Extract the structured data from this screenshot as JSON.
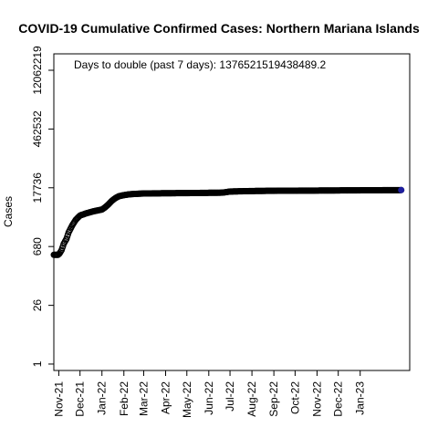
{
  "chart_data": {
    "type": "scatter",
    "title": "COVID-19 Cumulative Confirmed Cases: Northern Mariana Islands",
    "xlabel": "",
    "ylabel": "Cases",
    "annotation": "Days to double (past 7 days): 1376521519438489.2",
    "y_scale": "log",
    "ylim": [
      0.7,
      30000000
    ],
    "xlim": [
      "2021-10-25",
      "2023-03-12"
    ],
    "y_ticks": [
      1,
      26,
      680,
      17736,
      462532,
      12062219
    ],
    "y_tick_labels": [
      "1",
      "26",
      "680",
      "17736",
      "462532",
      "12062219"
    ],
    "x_ticks": [
      "2021-11-01",
      "2021-12-01",
      "2022-01-01",
      "2022-02-01",
      "2022-03-01",
      "2022-04-01",
      "2022-05-01",
      "2022-06-01",
      "2022-07-01",
      "2022-08-01",
      "2022-09-01",
      "2022-10-01",
      "2022-11-01",
      "2022-12-01",
      "2023-01-01"
    ],
    "x_tick_labels": [
      "Nov-21",
      "Dec-21",
      "Jan-22",
      "Feb-22",
      "Mar-22",
      "Apr-22",
      "May-22",
      "Jun-22",
      "Jul-22",
      "Aug-22",
      "Sep-22",
      "Oct-22",
      "Nov-22",
      "Dec-22",
      "Jan-23"
    ],
    "grid": false,
    "marker_color": "#000000",
    "last_marker_color": "#1f1f9f",
    "series": [
      {
        "x": [
          "2021-10-25",
          "2021-10-31",
          "2021-11-02",
          "2021-11-05",
          "2021-11-08",
          "2021-11-12",
          "2021-11-15",
          "2021-11-20",
          "2021-11-25",
          "2021-12-01",
          "2021-12-10",
          "2021-12-20",
          "2022-01-01",
          "2022-01-05",
          "2022-01-10",
          "2022-01-15",
          "2022-01-20",
          "2022-01-25",
          "2022-02-01",
          "2022-02-10",
          "2022-02-20",
          "2022-03-01",
          "2022-03-15",
          "2022-04-01",
          "2022-05-01",
          "2022-06-01",
          "2022-06-20",
          "2022-07-01",
          "2022-08-01",
          "2022-09-01",
          "2022-10-01",
          "2022-11-01",
          "2022-12-01",
          "2023-01-01",
          "2023-02-01",
          "2023-02-28"
        ],
        "y": [
          430,
          430,
          460,
          560,
          790,
          1050,
          1500,
          2200,
          3000,
          3800,
          4300,
          4800,
          5300,
          5900,
          7000,
          8600,
          10000,
          11100,
          11800,
          12400,
          12700,
          12900,
          13000,
          13100,
          13200,
          13400,
          13500,
          14400,
          14800,
          15000,
          15100,
          15200,
          15300,
          15400,
          15500,
          15600
        ]
      }
    ]
  }
}
